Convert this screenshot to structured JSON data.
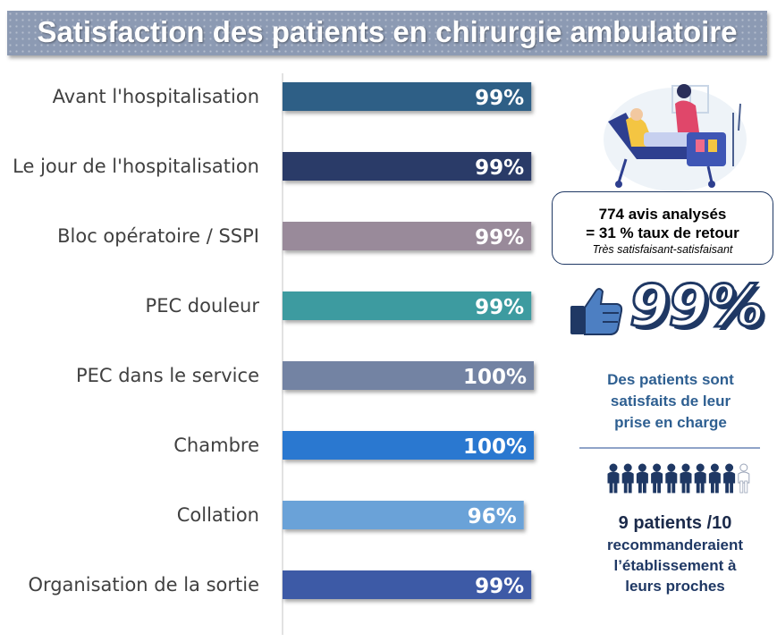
{
  "title": "Satisfaction des patients en chirurgie ambulatoire",
  "chart_data": {
    "type": "bar",
    "orientation": "horizontal",
    "categories": [
      "Avant l'hospitalisation",
      "Le jour de l'hospitalisation",
      "Bloc opératoire / SSPI",
      "PEC douleur",
      "PEC dans le service",
      "Chambre",
      "Collation",
      "Organisation de la sortie"
    ],
    "values": [
      99,
      99,
      99,
      99,
      100,
      100,
      96,
      99
    ],
    "value_labels": [
      "99%",
      "99%",
      "99%",
      "99%",
      "100%",
      "100%",
      "96%",
      "99%"
    ],
    "colors": [
      "#2d5f86",
      "#2a3b68",
      "#998a9a",
      "#3e9ba0",
      "#7383a3",
      "#2b78d0",
      "#6aa2d8",
      "#3e5aa6"
    ],
    "xlim": [
      0,
      100
    ],
    "grid": false,
    "legend": "none"
  },
  "stats": {
    "line1": "774 avis analysés",
    "line2": "= 31 % taux de retour",
    "line3": "Très satisfaisant-satisfaisant"
  },
  "highlight": {
    "percent": "99%",
    "text": [
      "Des patients sont",
      "satisfaits de leur",
      "prise en charge"
    ]
  },
  "recommend": {
    "head": "9 patients /10",
    "body": [
      "recommanderaient",
      "l’établissement à",
      "leurs proches"
    ],
    "filled": 9,
    "total": 10
  },
  "icons": {
    "illustration": "hospital-bed-illustration",
    "thumb": "thumbs-up-icon",
    "people": "people-icon"
  }
}
